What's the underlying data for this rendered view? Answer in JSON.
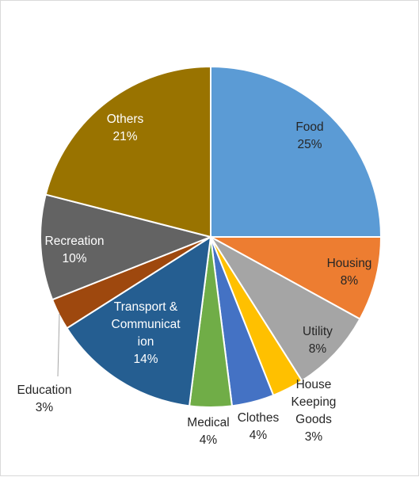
{
  "chart_data": {
    "type": "pie",
    "title": "",
    "start_angle_deg": 0,
    "direction": "clockwise",
    "series": [
      {
        "values": [
          25,
          8,
          8,
          3,
          4,
          4,
          14,
          3,
          10,
          21
        ],
        "categories": [
          "Food",
          "Housing",
          "Utility",
          "House Keeping Goods",
          "Clothes",
          "Medical",
          "Transport & Communication",
          "Education",
          "Recreation",
          "Others"
        ]
      }
    ],
    "labels": [
      {
        "category": "Food",
        "lines": [
          "Food",
          "25%"
        ],
        "placement": "inside",
        "text_color": "#262626"
      },
      {
        "category": "Housing",
        "lines": [
          "Housing",
          "8%"
        ],
        "placement": "inside",
        "text_color": "#262626"
      },
      {
        "category": "Utility",
        "lines": [
          "Utility",
          "8%"
        ],
        "placement": "inside",
        "text_color": "#262626"
      },
      {
        "category": "House Keeping Goods",
        "lines": [
          "House",
          "Keeping",
          "Goods",
          "3%"
        ],
        "placement": "outside",
        "text_color": "#262626"
      },
      {
        "category": "Clothes",
        "lines": [
          "Clothes",
          "4%"
        ],
        "placement": "outside",
        "text_color": "#262626"
      },
      {
        "category": "Medical",
        "lines": [
          "Medical",
          "4%"
        ],
        "placement": "outside",
        "text_color": "#262626"
      },
      {
        "category": "Transport & Communication",
        "lines": [
          "Transport &",
          "Communicat",
          "ion",
          "14%"
        ],
        "placement": "inside",
        "text_color": "#ffffff"
      },
      {
        "category": "Education",
        "lines": [
          "Education",
          "3%"
        ],
        "placement": "outside-leader",
        "text_color": "#262626"
      },
      {
        "category": "Recreation",
        "lines": [
          "Recreation",
          "10%"
        ],
        "placement": "inside",
        "text_color": "#ffffff"
      },
      {
        "category": "Others",
        "lines": [
          "Others",
          "21%"
        ],
        "placement": "inside",
        "text_color": "#ffffff"
      }
    ],
    "colors": [
      "#5b9bd5",
      "#ed7d31",
      "#a5a5a5",
      "#ffc000",
      "#4472c4",
      "#70ad47",
      "#255e91",
      "#9e480e",
      "#636363",
      "#997300"
    ],
    "slice_border_color": "#ffffff",
    "legend": "none"
  }
}
